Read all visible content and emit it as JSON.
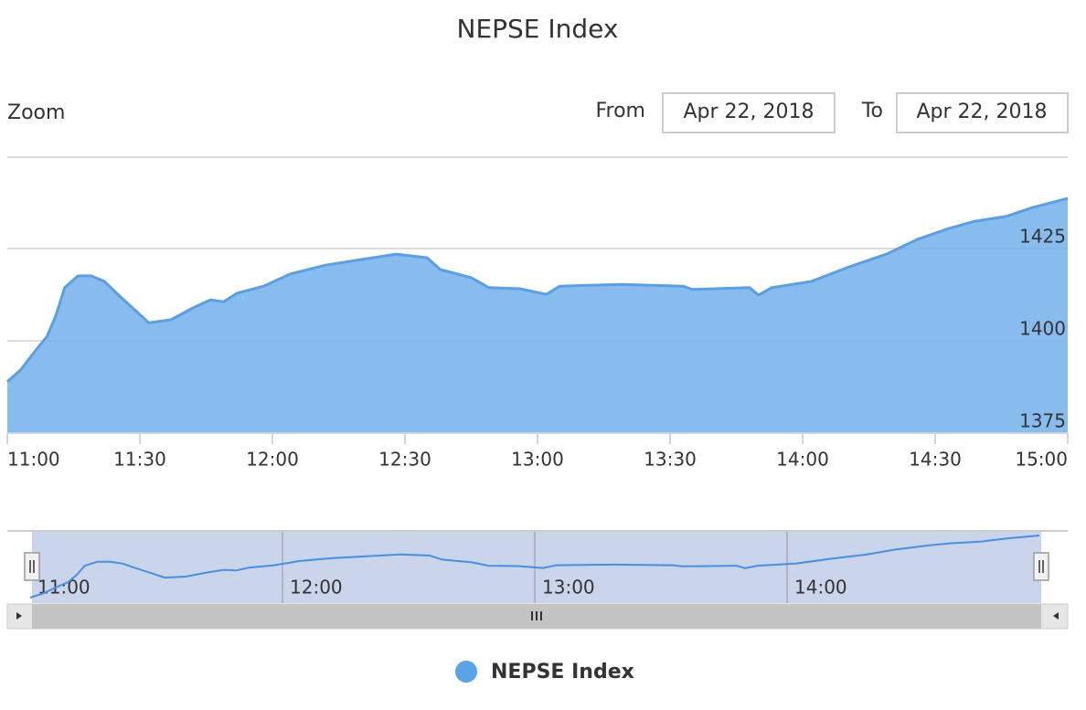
{
  "chart_data": {
    "type": "area",
    "title": "NEPSE Index",
    "zoom_label": "Zoom",
    "from_label": "From",
    "from_date": "Apr 22, 2018",
    "to_label": "To",
    "to_date": "Apr 22, 2018",
    "x": [
      "11:00",
      "11:03",
      "11:07",
      "11:09",
      "11:11",
      "11:13",
      "11:16",
      "11:19",
      "11:22",
      "11:25",
      "11:29",
      "11:32",
      "11:37",
      "11:42",
      "11:46",
      "11:49",
      "11:52",
      "11:58",
      "12:04",
      "12:12",
      "12:19",
      "12:28",
      "12:35",
      "12:38",
      "12:45",
      "12:49",
      "12:56",
      "13:02",
      "13:05",
      "13:19",
      "13:33",
      "13:35",
      "13:48",
      "13:50",
      "13:53",
      "14:02",
      "14:10",
      "14:19",
      "14:26",
      "14:33",
      "14:39",
      "14:46",
      "14:52",
      "15:00"
    ],
    "series": [
      {
        "name": "NEPSE Index",
        "color": "#7cb5ec",
        "values": [
          1388.9,
          1392.1,
          1398.3,
          1401.2,
          1406.9,
          1414.4,
          1417.6,
          1417.6,
          1416.1,
          1412.6,
          1408.2,
          1404.9,
          1405.7,
          1408.9,
          1411.1,
          1410.6,
          1412.9,
          1414.8,
          1418.1,
          1420.5,
          1421.8,
          1423.5,
          1422.5,
          1419.3,
          1417.1,
          1414.4,
          1414.1,
          1412.6,
          1414.8,
          1415.3,
          1414.8,
          1413.9,
          1414.4,
          1412.4,
          1414.4,
          1416.1,
          1419.8,
          1423.5,
          1427.5,
          1430.4,
          1432.4,
          1433.7,
          1436.1,
          1438.6
        ]
      }
    ],
    "xlim": [
      "11:00",
      "15:00"
    ],
    "xticks": [
      "11:00",
      "11:30",
      "12:00",
      "12:30",
      "13:00",
      "13:30",
      "14:00",
      "14:30",
      "15:00"
    ],
    "ylim": [
      1375,
      1450
    ],
    "yticks": [
      1375,
      1400,
      1425
    ],
    "grid": true,
    "navigator_xticks": [
      "11:00",
      "12:00",
      "13:00",
      "14:00"
    ]
  }
}
